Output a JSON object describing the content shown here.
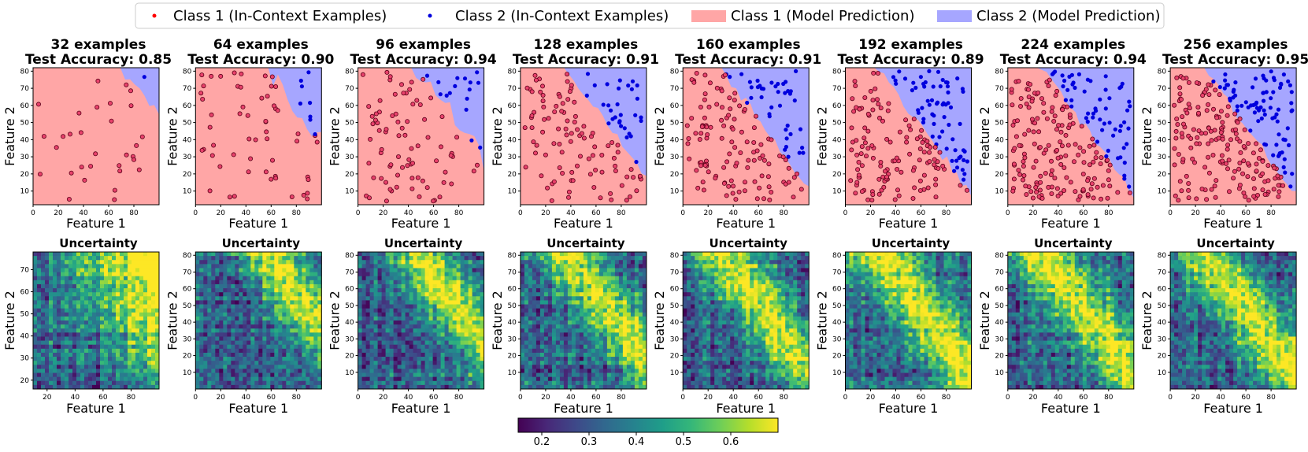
{
  "legend": {
    "items": [
      {
        "label": "Class 1 (In-Context Examples)",
        "kind": "marker",
        "color": "#ff0000"
      },
      {
        "label": "Class 2 (In-Context Examples)",
        "kind": "marker",
        "color": "#0000dd"
      },
      {
        "label": "Class 1 (Model Prediction)",
        "kind": "patch",
        "color": "#ffa6a6"
      },
      {
        "label": "Class 2 (Model Prediction)",
        "kind": "patch",
        "color": "#a6a6ff"
      }
    ]
  },
  "colors": {
    "class1_region": "#ffa6a6",
    "class2_region": "#a6a6ff",
    "class1_point": "#e8416b",
    "class2_point": "#0000dd",
    "viridis": [
      "#440154",
      "#482878",
      "#3e4989",
      "#31688e",
      "#26828e",
      "#1f9e89",
      "#35b779",
      "#6ece58",
      "#b5de2b",
      "#fde725"
    ]
  },
  "chart_data": {
    "type": "grid-of-panels",
    "panels": [
      {
        "examples": "32 examples",
        "accuracy": "Test Accuracy: 0.85",
        "n": 32,
        "boundary": 155,
        "uncertainty_ylim": [
          16,
          78
        ],
        "uncertainty_yticks": [
          "20",
          "30",
          "40",
          "50",
          "60",
          "70"
        ]
      },
      {
        "examples": "64 examples",
        "accuracy": "Test Accuracy: 0.90",
        "n": 64,
        "boundary": 138,
        "uncertainty_ylim": [
          0,
          82
        ],
        "uncertainty_yticks": [
          "10",
          "20",
          "30",
          "40",
          "50",
          "60",
          "70",
          "80"
        ]
      },
      {
        "examples": "96 examples",
        "accuracy": "Test Accuracy: 0.94",
        "n": 96,
        "boundary": 128,
        "uncertainty_ylim": [
          0,
          82
        ],
        "uncertainty_yticks": [
          "10",
          "20",
          "30",
          "40",
          "50",
          "60",
          "70",
          "80"
        ]
      },
      {
        "examples": "128 examples",
        "accuracy": "Test Accuracy: 0.91",
        "n": 128,
        "boundary": 118,
        "uncertainty_ylim": [
          0,
          82
        ],
        "uncertainty_yticks": [
          "10",
          "20",
          "30",
          "40",
          "50",
          "60",
          "70",
          "80"
        ]
      },
      {
        "examples": "160 examples",
        "accuracy": "Test Accuracy: 0.91",
        "n": 160,
        "boundary": 112,
        "uncertainty_ylim": [
          0,
          82
        ],
        "uncertainty_yticks": [
          "10",
          "20",
          "30",
          "40",
          "50",
          "60",
          "70",
          "80"
        ]
      },
      {
        "examples": "192 examples",
        "accuracy": "Test Accuracy: 0.89",
        "n": 192,
        "boundary": 108,
        "uncertainty_ylim": [
          0,
          82
        ],
        "uncertainty_yticks": [
          "10",
          "20",
          "30",
          "40",
          "50",
          "60",
          "70",
          "80"
        ]
      },
      {
        "examples": "224 examples",
        "accuracy": "Test Accuracy: 0.94",
        "n": 224,
        "boundary": 108,
        "uncertainty_ylim": [
          0,
          82
        ],
        "uncertainty_yticks": [
          "10",
          "20",
          "30",
          "40",
          "50",
          "60",
          "70",
          "80"
        ]
      },
      {
        "examples": "256 examples",
        "accuracy": "Test Accuracy: 0.95",
        "n": 256,
        "boundary": 108,
        "uncertainty_ylim": [
          0,
          82
        ],
        "uncertainty_yticks": [
          "10",
          "20",
          "30",
          "40",
          "50",
          "60",
          "70",
          "80"
        ]
      }
    ],
    "prediction_xlim": [
      0,
      100
    ],
    "prediction_ylim": [
      2,
      82
    ],
    "xticks": [
      "0",
      "20",
      "40",
      "60",
      "80"
    ],
    "prediction_yticks": [
      "10",
      "20",
      "30",
      "40",
      "50",
      "60",
      "70",
      "80"
    ],
    "xlabel": "Feature 1",
    "ylabel": "Feature 2",
    "uncertainty_title": "Uncertainty",
    "uncertainty_xlim_first": [
      10,
      100
    ],
    "uncertainty_xticks_first": [
      "20",
      "40",
      "60",
      "80"
    ],
    "uncertainty_xlim": [
      0,
      100
    ],
    "uncertainty_xticks": [
      "0",
      "20",
      "40",
      "60",
      "80"
    ],
    "colorbar": {
      "range": [
        0.15,
        0.7
      ],
      "ticks": [
        "0.2",
        "0.3",
        "0.4",
        "0.5",
        "0.6"
      ]
    }
  }
}
